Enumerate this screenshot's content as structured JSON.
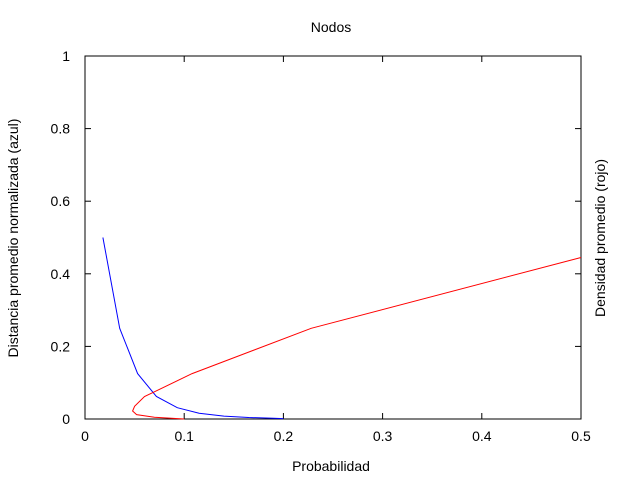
{
  "chart_data": {
    "type": "line",
    "title": "Nodos",
    "xlabel": "Probabilidad",
    "ylabel": "Distancia promedio normalizada (azul)",
    "y2label": "Densidad promedio (rojo)",
    "xlim": [
      0,
      0.5
    ],
    "ylim": [
      0,
      1
    ],
    "x_ticks": [
      0,
      0.1,
      0.2,
      0.3,
      0.4,
      0.5
    ],
    "x_tick_labels": [
      "0",
      "0.1",
      "0.2",
      "0.3",
      "0.4",
      "0.5"
    ],
    "y_ticks": [
      0,
      0.2,
      0.4,
      0.6,
      0.8,
      1
    ],
    "y_tick_labels": [
      "0",
      "0.2",
      "0.4",
      "0.6",
      "0.8",
      "1"
    ],
    "grid": false,
    "legend": "none",
    "series": [
      {
        "color": "#0000ff",
        "x": [
          0.018,
          0.035,
          0.053,
          0.072,
          0.093,
          0.115,
          0.14,
          0.165,
          0.19,
          0.2
        ],
        "y": [
          0.5,
          0.25,
          0.125,
          0.062,
          0.031,
          0.016,
          0.008,
          0.004,
          0.002,
          0.001
        ]
      },
      {
        "color": "#ff0000",
        "x": [
          0.1,
          0.07,
          0.052,
          0.048,
          0.05,
          0.06,
          0.07,
          0.108,
          0.228,
          0.5
        ],
        "y": [
          0.0,
          0.005,
          0.012,
          0.022,
          0.035,
          0.062,
          0.075,
          0.125,
          0.25,
          0.445
        ]
      }
    ]
  }
}
